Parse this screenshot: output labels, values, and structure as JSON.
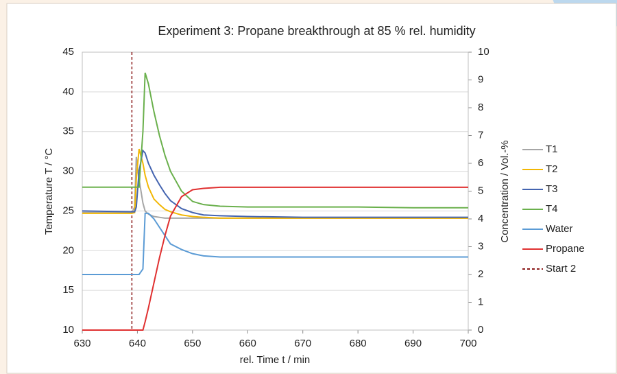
{
  "chart_data": {
    "type": "line",
    "title": "Experiment 3: Propane breakthrough at 85 % rel. humidity",
    "x_label": "rel. Time t  / min",
    "y_label": "Temperature T / °C",
    "y2_label": "Concentration / Vol.-%",
    "x": [
      630,
      639,
      639.5,
      639.8,
      640.3,
      641,
      641.4,
      642,
      643,
      644,
      645,
      646,
      648,
      650,
      652,
      655,
      660,
      670,
      680,
      690,
      700
    ],
    "xlim": [
      630,
      700
    ],
    "xticks": [
      630,
      640,
      650,
      660,
      670,
      680,
      690,
      700
    ],
    "ylim": [
      10,
      45
    ],
    "yticks": [
      10,
      15,
      20,
      25,
      30,
      35,
      40,
      45
    ],
    "y2lim": [
      0,
      10
    ],
    "y2ticks": [
      0,
      1,
      2,
      3,
      4,
      5,
      6,
      7,
      8,
      9,
      10
    ],
    "grid": true,
    "legend": "right",
    "series": [
      {
        "name": "T1",
        "color": "#a6a6a6",
        "values": [
          24.8,
          24.8,
          25.5,
          31.8,
          29,
          26,
          25,
          24.6,
          24.3,
          24.2,
          24.1,
          24.1,
          24.1,
          24.1,
          24.1,
          24.1,
          24.1,
          24.1,
          24.1,
          24.1,
          24.1
        ]
      },
      {
        "name": "T2",
        "color": "#f2b705",
        "values": [
          24.7,
          24.7,
          24.8,
          29,
          32.8,
          31,
          29.5,
          28,
          26.5,
          25.8,
          25.2,
          24.9,
          24.5,
          24.3,
          24.2,
          24.1,
          24.1,
          24.1,
          24.1,
          24.1,
          24.1
        ]
      },
      {
        "name": "T3",
        "color": "#4464b0",
        "values": [
          25.0,
          24.9,
          24.9,
          25.5,
          30,
          32.6,
          32.3,
          31,
          29.5,
          28.3,
          27.2,
          26.3,
          25.3,
          24.8,
          24.5,
          24.4,
          24.3,
          24.2,
          24.2,
          24.2,
          24.2
        ]
      },
      {
        "name": "T4",
        "color": "#6ab04c",
        "values": [
          28,
          28,
          28,
          28,
          28,
          35,
          42.4,
          41,
          37.5,
          34.5,
          32,
          30,
          27.5,
          26.2,
          25.8,
          25.6,
          25.5,
          25.5,
          25.5,
          25.4,
          25.4
        ]
      },
      {
        "name": "Water",
        "color": "#5b9bd5",
        "axis": "y2",
        "values": [
          2.0,
          2.0,
          2.0,
          2.0,
          2.0,
          2.2,
          4.2,
          4.2,
          4.0,
          3.7,
          3.4,
          3.1,
          2.9,
          2.75,
          2.67,
          2.63,
          2.63,
          2.63,
          2.63,
          2.63,
          2.63
        ]
      },
      {
        "name": "Propane",
        "color": "#e03030",
        "axis": "y2",
        "values": [
          0,
          0,
          0,
          0,
          0,
          0,
          0.3,
          0.8,
          1.7,
          2.6,
          3.4,
          4.1,
          4.8,
          5.05,
          5.1,
          5.14,
          5.14,
          5.14,
          5.14,
          5.14,
          5.14
        ]
      }
    ],
    "markers": [
      {
        "name": "Start 2",
        "x": 639,
        "color": "#8b1a1a",
        "dash": true
      }
    ]
  }
}
